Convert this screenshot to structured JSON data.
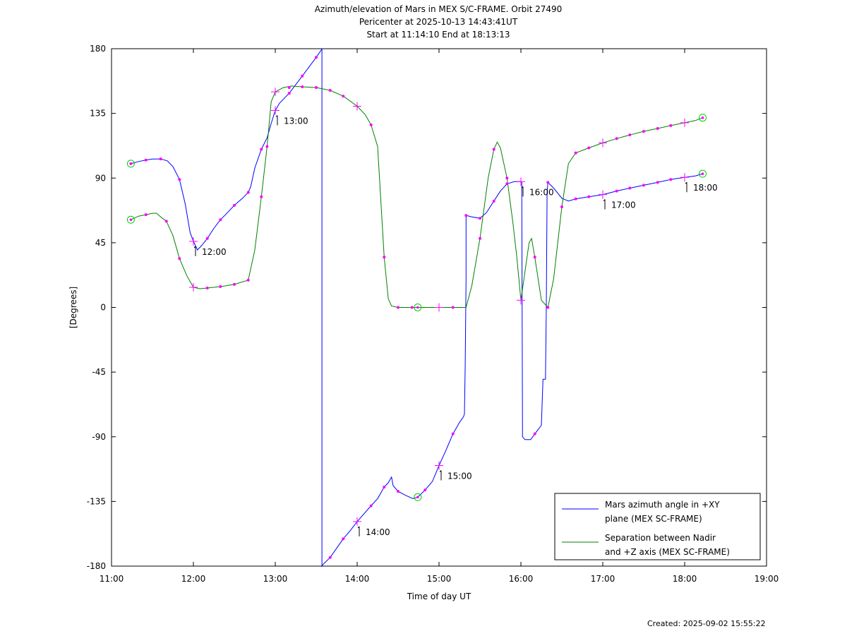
{
  "chart_data": {
    "type": "line",
    "title": [
      "Azimuth/elevation of Mars in MEX S/C-FRAME.  Orbit 27490",
      "Pericenter at 2025-10-13 14:43:41UT",
      "Start at 11:14:10 End at 18:13:13"
    ],
    "xlabel": "Time of day UT",
    "ylabel": "[Degrees]",
    "xlim": [
      11.0,
      19.0
    ],
    "ylim": [
      -180,
      180
    ],
    "x_ticks": [
      {
        "value": 11,
        "label": "11:00"
      },
      {
        "value": 12,
        "label": "12:00"
      },
      {
        "value": 13,
        "label": "13:00"
      },
      {
        "value": 14,
        "label": "14:00"
      },
      {
        "value": 15,
        "label": "15:00"
      },
      {
        "value": 16,
        "label": "16:00"
      },
      {
        "value": 17,
        "label": "17:00"
      },
      {
        "value": 18,
        "label": "18:00"
      },
      {
        "value": 19,
        "label": "19:00"
      }
    ],
    "y_ticks": [
      {
        "value": 180,
        "label": "180"
      },
      {
        "value": 135,
        "label": "135"
      },
      {
        "value": 90,
        "label": "90"
      },
      {
        "value": 45,
        "label": "45"
      },
      {
        "value": 0,
        "label": "0"
      },
      {
        "value": -45,
        "label": "-45"
      },
      {
        "value": -90,
        "label": "-90"
      },
      {
        "value": -135,
        "label": "-135"
      },
      {
        "value": -180,
        "label": "-180"
      }
    ],
    "grid": false,
    "legend_position": "bottom-right",
    "marker_color": "#ff00ff",
    "circle_color": "#00cc00",
    "series": [
      {
        "name": "Mars azimuth angle in +XY plane (MEX SC-FRAME)",
        "legend_lines": [
          "Mars azimuth angle in +XY",
          "plane (MEX SC-FRAME)"
        ],
        "color": "#0000ff",
        "points": [
          [
            11.236,
            100
          ],
          [
            11.33,
            101.5
          ],
          [
            11.42,
            102.5
          ],
          [
            11.5,
            103.3
          ],
          [
            11.6,
            103.3
          ],
          [
            11.68,
            102
          ],
          [
            11.75,
            98
          ],
          [
            11.83,
            89
          ],
          [
            11.9,
            72
          ],
          [
            11.96,
            52
          ],
          [
            12.0,
            46
          ],
          [
            12.05,
            40
          ],
          [
            12.1,
            43
          ],
          [
            12.17,
            48
          ],
          [
            12.25,
            55
          ],
          [
            12.33,
            61
          ],
          [
            12.4,
            65
          ],
          [
            12.5,
            71
          ],
          [
            12.6,
            76
          ],
          [
            12.67,
            80
          ],
          [
            12.7,
            84
          ],
          [
            12.75,
            97
          ],
          [
            12.83,
            110
          ],
          [
            12.9,
            118
          ],
          [
            12.95,
            128
          ],
          [
            13.0,
            137
          ],
          [
            13.05,
            142
          ],
          [
            13.17,
            149
          ],
          [
            13.33,
            161
          ],
          [
            13.5,
            174
          ],
          [
            13.56,
            179
          ],
          [
            13.57,
            180
          ],
          [
            13.57,
            -180
          ],
          [
            13.58,
            -179
          ],
          [
            13.67,
            -174
          ],
          [
            13.83,
            -161
          ],
          [
            13.92,
            -155
          ],
          [
            14.0,
            -149
          ],
          [
            14.17,
            -138
          ],
          [
            14.25,
            -133
          ],
          [
            14.33,
            -125
          ],
          [
            14.38,
            -122
          ],
          [
            14.42,
            -118
          ],
          [
            14.44,
            -124
          ],
          [
            14.5,
            -128
          ],
          [
            14.6,
            -131
          ],
          [
            14.68,
            -133
          ],
          [
            14.74,
            -132
          ],
          [
            14.83,
            -127
          ],
          [
            14.92,
            -121
          ],
          [
            15.0,
            -110
          ],
          [
            15.08,
            -100
          ],
          [
            15.17,
            -88
          ],
          [
            15.25,
            -80
          ],
          [
            15.3,
            -76
          ],
          [
            15.31,
            -74
          ],
          [
            15.32,
            -40
          ],
          [
            15.33,
            20
          ],
          [
            15.33,
            64
          ],
          [
            15.4,
            63
          ],
          [
            15.5,
            62
          ],
          [
            15.58,
            66
          ],
          [
            15.67,
            74
          ],
          [
            15.75,
            81
          ],
          [
            15.83,
            86
          ],
          [
            15.92,
            87.5
          ],
          [
            16.0,
            87.5
          ],
          [
            16.01,
            87
          ],
          [
            16.02,
            -90
          ],
          [
            16.05,
            -92
          ],
          [
            16.12,
            -92
          ],
          [
            16.17,
            -88
          ],
          [
            16.25,
            -82
          ],
          [
            16.27,
            -50
          ],
          [
            16.3,
            -50
          ],
          [
            16.31,
            0
          ],
          [
            16.32,
            80
          ],
          [
            16.33,
            87
          ],
          [
            16.4,
            83
          ],
          [
            16.5,
            76
          ],
          [
            16.58,
            74
          ],
          [
            16.67,
            75.5
          ],
          [
            16.83,
            77
          ],
          [
            17.0,
            78.5
          ],
          [
            17.17,
            81
          ],
          [
            17.33,
            83
          ],
          [
            17.5,
            85
          ],
          [
            17.67,
            87
          ],
          [
            17.83,
            89
          ],
          [
            18.0,
            90.5
          ],
          [
            18.13,
            91.5
          ],
          [
            18.22,
            93
          ]
        ],
        "markers": [
          [
            11.236,
            100
          ],
          [
            11.42,
            102.5
          ],
          [
            11.6,
            103.3
          ],
          [
            11.83,
            89
          ],
          [
            12.17,
            48
          ],
          [
            12.33,
            61
          ],
          [
            12.5,
            71
          ],
          [
            12.67,
            80
          ],
          [
            12.83,
            110
          ],
          [
            13.17,
            149
          ],
          [
            13.33,
            161
          ],
          [
            13.5,
            174
          ],
          [
            13.67,
            -174
          ],
          [
            13.83,
            -161
          ],
          [
            14.17,
            -138
          ],
          [
            14.33,
            -125
          ],
          [
            14.5,
            -128
          ],
          [
            14.83,
            -127
          ],
          [
            15.17,
            -88
          ],
          [
            15.33,
            64
          ],
          [
            15.5,
            62
          ],
          [
            15.67,
            74
          ],
          [
            15.83,
            86
          ],
          [
            16.17,
            -88
          ],
          [
            16.33,
            87
          ],
          [
            16.67,
            75.5
          ],
          [
            16.83,
            77
          ],
          [
            17.17,
            81
          ],
          [
            17.33,
            83
          ],
          [
            17.5,
            85
          ],
          [
            17.67,
            87
          ],
          [
            17.83,
            89
          ]
        ],
        "hour_crosses": [
          [
            12.0,
            46
          ],
          [
            13.0,
            137
          ],
          [
            14.0,
            -149
          ],
          [
            15.0,
            -110
          ],
          [
            16.0,
            87.5
          ],
          [
            17.0,
            78.5
          ],
          [
            18.0,
            90.5
          ]
        ],
        "circles": [
          [
            11.236,
            100
          ],
          [
            14.74,
            -132
          ],
          [
            18.22,
            93
          ]
        ]
      },
      {
        "name": "Separation between Nadir and +Z axis (MEX SC-FRAME)",
        "legend_lines": [
          "Separation between Nadir",
          "and +Z axis (MEX SC-FRAME)"
        ],
        "color": "#008000",
        "points": [
          [
            11.236,
            61
          ],
          [
            11.33,
            63.5
          ],
          [
            11.42,
            64.5
          ],
          [
            11.5,
            65.5
          ],
          [
            11.55,
            65.5
          ],
          [
            11.6,
            63
          ],
          [
            11.67,
            60
          ],
          [
            11.75,
            50
          ],
          [
            11.83,
            34
          ],
          [
            11.92,
            22
          ],
          [
            12.0,
            14
          ],
          [
            12.08,
            13
          ],
          [
            12.17,
            13.5
          ],
          [
            12.33,
            14.5
          ],
          [
            12.5,
            16
          ],
          [
            12.67,
            19
          ],
          [
            12.75,
            40
          ],
          [
            12.83,
            77
          ],
          [
            12.9,
            112
          ],
          [
            12.95,
            143
          ],
          [
            13.0,
            150
          ],
          [
            13.1,
            153
          ],
          [
            13.2,
            154
          ],
          [
            13.33,
            153.5
          ],
          [
            13.5,
            153
          ],
          [
            13.67,
            151
          ],
          [
            13.83,
            147
          ],
          [
            14.0,
            140
          ],
          [
            14.1,
            134
          ],
          [
            14.17,
            127
          ],
          [
            14.25,
            112
          ],
          [
            14.33,
            35
          ],
          [
            14.38,
            6
          ],
          [
            14.42,
            1
          ],
          [
            14.5,
            0
          ],
          [
            14.74,
            0
          ],
          [
            15.0,
            0
          ],
          [
            15.17,
            0
          ],
          [
            15.33,
            0
          ],
          [
            15.4,
            15
          ],
          [
            15.5,
            48
          ],
          [
            15.6,
            90
          ],
          [
            15.67,
            110
          ],
          [
            15.71,
            115
          ],
          [
            15.75,
            111
          ],
          [
            15.83,
            90
          ],
          [
            15.9,
            60
          ],
          [
            15.95,
            35
          ],
          [
            16.0,
            5
          ],
          [
            16.05,
            25
          ],
          [
            16.1,
            45
          ],
          [
            16.13,
            48
          ],
          [
            16.17,
            35
          ],
          [
            16.25,
            5
          ],
          [
            16.33,
            0
          ],
          [
            16.4,
            20
          ],
          [
            16.5,
            70
          ],
          [
            16.58,
            100
          ],
          [
            16.67,
            107.5
          ],
          [
            16.83,
            111
          ],
          [
            17.0,
            114.5
          ],
          [
            17.17,
            117.5
          ],
          [
            17.33,
            120
          ],
          [
            17.5,
            122.5
          ],
          [
            17.67,
            124.5
          ],
          [
            17.83,
            126.5
          ],
          [
            18.0,
            128.5
          ],
          [
            18.13,
            130
          ],
          [
            18.22,
            132
          ]
        ],
        "markers": [
          [
            11.42,
            64.5
          ],
          [
            11.67,
            60
          ],
          [
            11.83,
            34
          ],
          [
            12.17,
            13.5
          ],
          [
            12.33,
            14.5
          ],
          [
            12.5,
            16
          ],
          [
            12.67,
            19
          ],
          [
            12.83,
            77
          ],
          [
            12.9,
            112
          ],
          [
            13.17,
            153
          ],
          [
            13.33,
            153.5
          ],
          [
            13.5,
            153
          ],
          [
            13.67,
            151
          ],
          [
            13.83,
            147
          ],
          [
            14.17,
            127
          ],
          [
            14.33,
            35
          ],
          [
            14.5,
            0
          ],
          [
            14.67,
            0
          ],
          [
            15.17,
            0
          ],
          [
            15.5,
            48
          ],
          [
            15.67,
            110
          ],
          [
            15.83,
            90
          ],
          [
            16.17,
            35
          ],
          [
            16.33,
            0
          ],
          [
            16.5,
            70
          ],
          [
            16.67,
            107.5
          ],
          [
            16.83,
            111
          ],
          [
            17.17,
            117.5
          ],
          [
            17.33,
            120
          ],
          [
            17.5,
            122.5
          ],
          [
            17.67,
            124.5
          ],
          [
            17.83,
            126.5
          ]
        ],
        "hour_crosses": [
          [
            12.0,
            14
          ],
          [
            13.0,
            150
          ],
          [
            14.0,
            140
          ],
          [
            15.0,
            0
          ],
          [
            16.0,
            5
          ],
          [
            17.0,
            114.5
          ],
          [
            18.0,
            128.5
          ]
        ],
        "circles": [
          [
            11.236,
            61
          ],
          [
            14.74,
            0
          ],
          [
            18.22,
            132
          ]
        ]
      }
    ],
    "time_annotations": [
      {
        "x": 12.0,
        "y": 46,
        "label": "12:00"
      },
      {
        "x": 13.0,
        "y": 137,
        "label": "13:00"
      },
      {
        "x": 14.0,
        "y": -149,
        "label": "14:00"
      },
      {
        "x": 15.0,
        "y": -110,
        "label": "15:00"
      },
      {
        "x": 16.0,
        "y": 87.5,
        "label": "16:00"
      },
      {
        "x": 17.0,
        "y": 78.5,
        "label": "17:00"
      },
      {
        "x": 18.0,
        "y": 90.5,
        "label": "18:00"
      }
    ]
  },
  "footer": {
    "created": "Created: 2025-09-02 15:55:22"
  }
}
